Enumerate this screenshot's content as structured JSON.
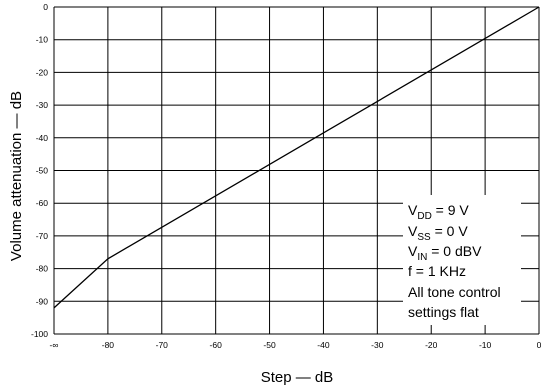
{
  "chart_data": {
    "type": "line",
    "title": "",
    "xlabel": "Step — dB",
    "ylabel": "Volume attenuation — dB",
    "x_ticks": [
      "-∞",
      "-80",
      "-70",
      "-60",
      "-50",
      "-40",
      "-30",
      "-20",
      "-10",
      "0"
    ],
    "y_ticks": [
      "0",
      "-10",
      "-20",
      "-30",
      "-40",
      "-50",
      "-60",
      "-70",
      "-80",
      "-90",
      "-100"
    ],
    "xlim": [
      "-∞",
      0
    ],
    "ylim": [
      -100,
      0
    ],
    "grid": true,
    "series": [
      {
        "name": "",
        "color": "#000000",
        "points": [
          {
            "x": "-∞",
            "y": -92
          },
          {
            "x": -80,
            "y": -77
          },
          {
            "x": 0,
            "y": 0
          }
        ]
      }
    ],
    "annotation_lines": [
      {
        "main": "V",
        "sub": "DD",
        "rest": " = 9 V"
      },
      {
        "main": "V",
        "sub": "SS",
        "rest": " = 0 V"
      },
      {
        "main": "V",
        "sub": "IN",
        "rest": " = 0 dBV"
      },
      {
        "main": "f = 1 KHz",
        "sub": "",
        "rest": ""
      },
      {
        "main": "All tone control",
        "sub": "",
        "rest": ""
      },
      {
        "main": "settings flat",
        "sub": "",
        "rest": ""
      }
    ]
  }
}
